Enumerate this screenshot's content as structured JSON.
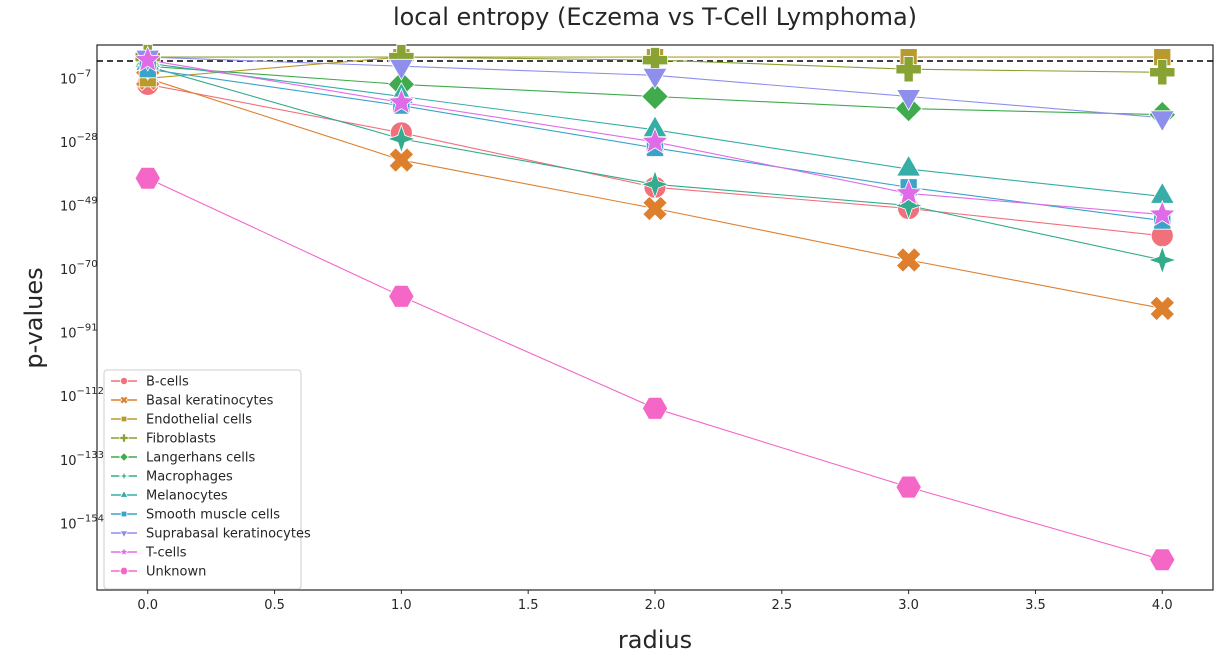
{
  "chart_data": {
    "type": "line",
    "title": "local entropy (Eczema vs T-Cell Lymphoma)",
    "xlabel": "radius",
    "ylabel": "p-values",
    "x": [
      0.0,
      1.0,
      2.0,
      3.0,
      4.0
    ],
    "x_ticks": [
      "0.0",
      "0.5",
      "1.0",
      "1.5",
      "2.0",
      "2.5",
      "3.0",
      "3.5",
      "4.0"
    ],
    "x_tick_values": [
      0.0,
      0.5,
      1.0,
      1.5,
      2.0,
      2.5,
      3.0,
      3.5,
      4.0
    ],
    "xlim": [
      -0.2,
      4.2
    ],
    "y_scale": "log",
    "y_tick_exponents": [
      -7,
      -28,
      -49,
      -70,
      -91,
      -112,
      -133,
      -154
    ],
    "ylim_exponent": [
      -176,
      4
    ],
    "reference_line": {
      "y_exponent": -1.3,
      "style": "dashed",
      "color": "#000000"
    },
    "grid": false,
    "legend_position": "lower-left",
    "series": [
      {
        "name": "B-cells",
        "color": "#f0707b",
        "marker": "circle",
        "y_exponent": [
          -9,
          -25,
          -43,
          -50,
          -59
        ]
      },
      {
        "name": "Basal keratinocytes",
        "color": "#de7f2e",
        "marker": "x",
        "y_exponent": [
          -7,
          -34,
          -50,
          -67,
          -83
        ]
      },
      {
        "name": "Endothelial cells",
        "color": "#b89a2e",
        "marker": "square",
        "y_exponent": [
          -7,
          0,
          0,
          0,
          0
        ]
      },
      {
        "name": "Fibroblasts",
        "color": "#88a333",
        "marker": "plus",
        "y_exponent": [
          0,
          0,
          -1,
          -4,
          -5
        ]
      },
      {
        "name": "Langerhans cells",
        "color": "#3fab4d",
        "marker": "diamond",
        "y_exponent": [
          -3,
          -9,
          -13,
          -17,
          -19
        ]
      },
      {
        "name": "Macrophages",
        "color": "#33ab8c",
        "marker": "star4",
        "y_exponent": [
          -3,
          -27,
          -42,
          -49,
          -67
        ]
      },
      {
        "name": "Melanocytes",
        "color": "#36ada6",
        "marker": "triangle-up",
        "y_exponent": [
          -2,
          -13,
          -24,
          -37,
          -46
        ]
      },
      {
        "name": "Smooth muscle cells",
        "color": "#3aa3c9",
        "marker": "square",
        "y_exponent": [
          -4,
          -16,
          -30,
          -43,
          -54
        ]
      },
      {
        "name": "Suprabasal keratinocytes",
        "color": "#8e8fed",
        "marker": "triangle-down",
        "y_exponent": [
          0,
          -3,
          -6,
          -13,
          -20
        ]
      },
      {
        "name": "T-cells",
        "color": "#e06be8",
        "marker": "star",
        "y_exponent": [
          -1,
          -15,
          -28,
          -45,
          -52
        ]
      },
      {
        "name": "Unknown",
        "color": "#f467c7",
        "marker": "hexagon",
        "y_exponent": [
          -40,
          -79,
          -116,
          -142,
          -166
        ]
      }
    ]
  }
}
